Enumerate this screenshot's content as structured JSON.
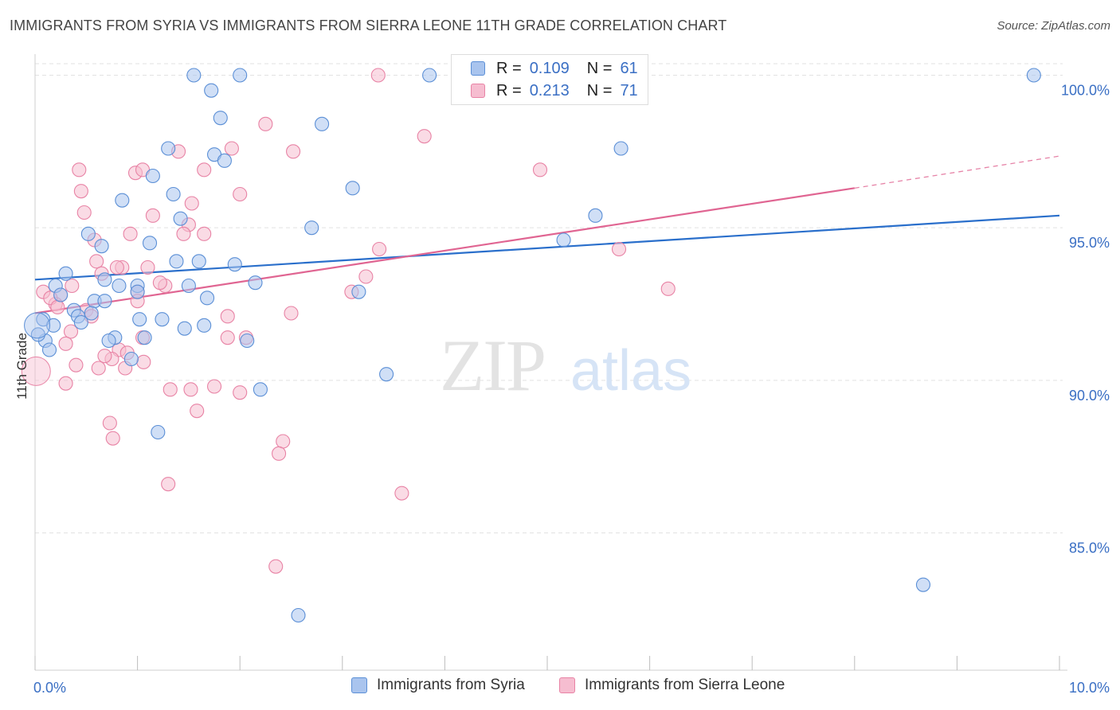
{
  "title": "IMMIGRANTS FROM SYRIA VS IMMIGRANTS FROM SIERRA LEONE 11TH GRADE CORRELATION CHART",
  "source": "Source: ZipAtlas.com",
  "watermark": {
    "zip": "ZIP",
    "atlas": "atlas"
  },
  "legend": {
    "rows": [
      {
        "r_label": "R =",
        "r_value": "0.109",
        "n_label": "N =",
        "n_value": "61"
      },
      {
        "r_label": "R =",
        "r_value": "0.213",
        "n_label": "N =",
        "n_value": "71"
      }
    ]
  },
  "colors": {
    "syria_fill": "#a9c4ee",
    "syria_stroke": "#5b8fd6",
    "syria_line": "#2a6fcb",
    "sl_fill": "#f6bdd0",
    "sl_stroke": "#e883a5",
    "sl_line": "#e06592",
    "grid": "#e2e2e2",
    "tick_label": "#3a6fc4"
  },
  "chart_data": {
    "type": "scatter",
    "title": "IMMIGRANTS FROM SYRIA VS IMMIGRANTS FROM SIERRA LEONE 11TH GRADE CORRELATION CHART",
    "xlabel": "",
    "ylabel": "11th Grade",
    "xlim": [
      0,
      10
    ],
    "ylim": [
      80.5,
      100.9
    ],
    "x_tick_labels": [
      {
        "value": 0,
        "label": "0.0%"
      },
      {
        "value": 10,
        "label": "10.0%"
      }
    ],
    "y_tick_labels": [
      {
        "value": 100,
        "label": "100.0%"
      },
      {
        "value": 95,
        "label": "95.0%"
      },
      {
        "value": 90,
        "label": "90.0%"
      },
      {
        "value": 85,
        "label": "85.0%"
      }
    ],
    "grid": true,
    "series": [
      {
        "name": "Immigrants from Syria",
        "r": 0.109,
        "n": 61,
        "trend": {
          "x_start": 0,
          "y_start": 93.3,
          "x_end": 10,
          "y_end": 95.4
        },
        "points": [
          [
            1.55,
            100.0
          ],
          [
            2.0,
            100.0
          ],
          [
            3.85,
            100.0
          ],
          [
            9.75,
            100.0
          ],
          [
            1.72,
            99.5
          ],
          [
            1.81,
            98.6
          ],
          [
            2.8,
            98.4
          ],
          [
            1.3,
            97.6
          ],
          [
            1.75,
            97.4
          ],
          [
            1.85,
            97.2
          ],
          [
            5.72,
            97.6
          ],
          [
            1.15,
            96.7
          ],
          [
            3.1,
            96.3
          ],
          [
            1.35,
            96.1
          ],
          [
            0.85,
            95.9
          ],
          [
            1.42,
            95.3
          ],
          [
            2.7,
            95.0
          ],
          [
            5.47,
            95.4
          ],
          [
            0.52,
            94.8
          ],
          [
            0.65,
            94.4
          ],
          [
            1.12,
            94.5
          ],
          [
            5.16,
            94.6
          ],
          [
            1.38,
            93.9
          ],
          [
            1.6,
            93.9
          ],
          [
            1.95,
            93.8
          ],
          [
            0.3,
            93.5
          ],
          [
            0.68,
            93.3
          ],
          [
            1.0,
            93.1
          ],
          [
            0.82,
            93.1
          ],
          [
            1.5,
            93.1
          ],
          [
            2.15,
            93.2
          ],
          [
            0.2,
            93.1
          ],
          [
            1.0,
            92.9
          ],
          [
            0.25,
            92.8
          ],
          [
            0.58,
            92.6
          ],
          [
            0.68,
            92.6
          ],
          [
            1.68,
            92.7
          ],
          [
            0.38,
            92.3
          ],
          [
            0.55,
            92.2
          ],
          [
            0.42,
            92.1
          ],
          [
            0.45,
            91.9
          ],
          [
            1.02,
            92.0
          ],
          [
            1.24,
            92.0
          ],
          [
            0.08,
            92.0
          ],
          [
            0.18,
            91.8
          ],
          [
            1.46,
            91.7
          ],
          [
            1.65,
            91.8
          ],
          [
            0.78,
            91.4
          ],
          [
            0.72,
            91.3
          ],
          [
            1.07,
            91.4
          ],
          [
            0.1,
            91.3
          ],
          [
            0.14,
            91.0
          ],
          [
            2.07,
            91.3
          ],
          [
            0.03,
            91.5
          ],
          [
            0.94,
            90.7
          ],
          [
            3.16,
            92.9
          ],
          [
            3.43,
            90.2
          ],
          [
            2.2,
            89.7
          ],
          [
            1.2,
            88.3
          ],
          [
            8.67,
            83.3
          ],
          [
            2.57,
            82.3
          ]
        ]
      },
      {
        "name": "Immigrants from Sierra Leone",
        "r": 0.213,
        "n": 71,
        "trend": {
          "x_start": 0,
          "y_start": 92.2,
          "x_end": 8.0,
          "y_end": 96.3,
          "dash_x_end": 10,
          "dash_y_end": 97.35
        },
        "points": [
          [
            3.35,
            100.0
          ],
          [
            2.25,
            98.4
          ],
          [
            3.8,
            98.0
          ],
          [
            1.92,
            97.6
          ],
          [
            1.4,
            97.5
          ],
          [
            2.52,
            97.5
          ],
          [
            0.43,
            96.9
          ],
          [
            0.98,
            96.8
          ],
          [
            1.05,
            96.9
          ],
          [
            1.65,
            96.9
          ],
          [
            4.93,
            96.9
          ],
          [
            0.45,
            96.2
          ],
          [
            2.0,
            96.1
          ],
          [
            1.53,
            95.8
          ],
          [
            0.48,
            95.5
          ],
          [
            1.15,
            95.4
          ],
          [
            1.5,
            95.1
          ],
          [
            1.45,
            94.8
          ],
          [
            1.65,
            94.8
          ],
          [
            0.93,
            94.8
          ],
          [
            0.58,
            94.6
          ],
          [
            3.36,
            94.3
          ],
          [
            5.7,
            94.3
          ],
          [
            0.6,
            93.9
          ],
          [
            0.85,
            93.7
          ],
          [
            0.8,
            93.7
          ],
          [
            1.1,
            93.7
          ],
          [
            0.65,
            93.5
          ],
          [
            3.23,
            93.4
          ],
          [
            0.36,
            93.1
          ],
          [
            1.27,
            93.1
          ],
          [
            1.22,
            93.2
          ],
          [
            1.0,
            92.9
          ],
          [
            3.09,
            92.9
          ],
          [
            6.18,
            93.0
          ],
          [
            0.08,
            92.9
          ],
          [
            0.25,
            92.8
          ],
          [
            0.2,
            92.5
          ],
          [
            0.15,
            92.7
          ],
          [
            0.22,
            92.4
          ],
          [
            1.0,
            92.6
          ],
          [
            0.5,
            92.3
          ],
          [
            0.55,
            92.1
          ],
          [
            1.88,
            92.1
          ],
          [
            2.5,
            92.2
          ],
          [
            0.35,
            91.6
          ],
          [
            0.3,
            91.2
          ],
          [
            0.82,
            91.0
          ],
          [
            0.9,
            90.9
          ],
          [
            0.75,
            90.7
          ],
          [
            1.88,
            91.4
          ],
          [
            2.06,
            91.4
          ],
          [
            0.68,
            90.8
          ],
          [
            1.05,
            91.4
          ],
          [
            0.4,
            90.5
          ],
          [
            0.62,
            90.4
          ],
          [
            1.06,
            90.6
          ],
          [
            0.88,
            90.4
          ],
          [
            0.3,
            89.9
          ],
          [
            1.32,
            89.7
          ],
          [
            1.52,
            89.7
          ],
          [
            1.75,
            89.8
          ],
          [
            2.0,
            89.6
          ],
          [
            1.58,
            89.0
          ],
          [
            0.73,
            88.6
          ],
          [
            0.76,
            88.1
          ],
          [
            2.42,
            88.0
          ],
          [
            2.38,
            87.6
          ],
          [
            1.3,
            86.6
          ],
          [
            3.58,
            86.3
          ],
          [
            2.35,
            83.9
          ]
        ]
      }
    ]
  },
  "bottom_legend": {
    "items": [
      {
        "label": "Immigrants from Syria"
      },
      {
        "label": "Immigrants from Sierra Leone"
      }
    ]
  }
}
